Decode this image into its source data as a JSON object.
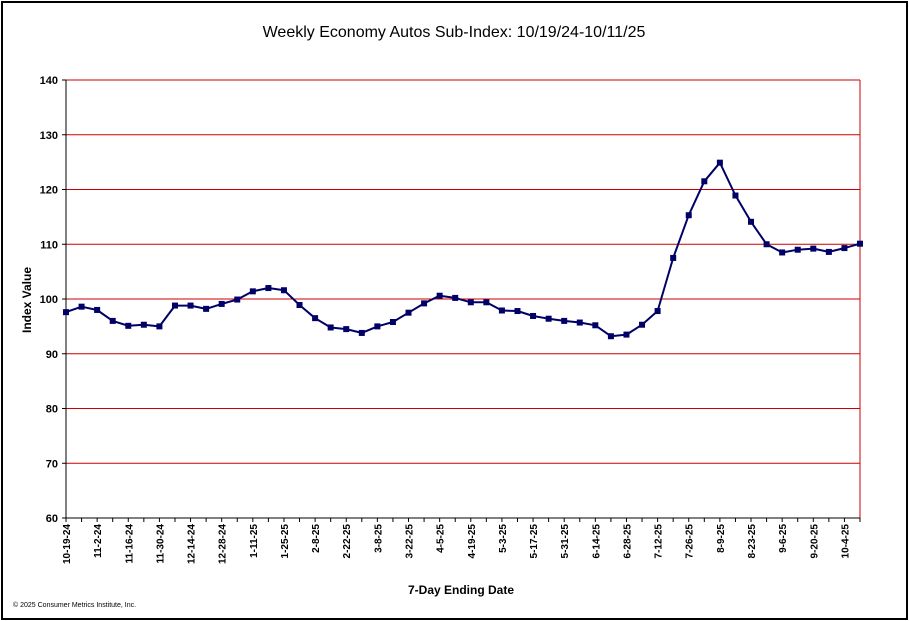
{
  "chart_data": {
    "type": "line",
    "title": "Weekly Economy Autos Sub-Index: 10/19/24-10/11/25",
    "xlabel": "7-Day Ending Date",
    "ylabel": "Index Value",
    "ylim": [
      60,
      140
    ],
    "yticks": [
      "140",
      "130",
      "120",
      "110",
      "100",
      "90",
      "80",
      "70",
      "60"
    ],
    "grid": true,
    "x_tick_labels": [
      "10-19-24",
      "11-2-24",
      "11-16-24",
      "11-30-24",
      "12-14-24",
      "12-28-24",
      "1-11-25",
      "1-25-25",
      "2-8-25",
      "2-22-25",
      "3-8-25",
      "3-22-25",
      "4-5-25",
      "4-19-25",
      "5-3-25",
      "5-17-25",
      "5-31-25",
      "6-14-25",
      "6-28-25",
      "7-12-25",
      "7-26-25",
      "8-9-25",
      "8-23-25",
      "9-6-25",
      "9-20-25",
      "10-4-25"
    ],
    "series": [
      {
        "values": [
          97.6,
          98.6,
          98.0,
          96.0,
          95.1,
          95.3,
          95.0,
          98.8,
          98.8,
          98.2,
          99.1,
          99.9,
          101.4,
          102.0,
          101.6,
          98.9,
          96.5,
          94.8,
          94.5,
          93.8,
          95.0,
          95.8,
          97.5,
          99.2,
          100.6,
          100.2,
          99.4,
          99.4,
          97.9,
          97.8,
          96.9,
          96.4,
          96.0,
          95.7,
          95.2,
          93.2,
          93.5,
          95.3,
          97.8,
          107.5,
          115.3,
          121.5,
          124.9,
          118.9,
          114.1,
          110.0,
          108.5,
          109.0,
          109.2,
          108.6,
          109.3,
          110.1
        ]
      }
    ],
    "colors": {
      "line": "#000066",
      "marker": "#000066",
      "grid": "#cc0000",
      "axis": "#000000",
      "frame": "#000000"
    }
  },
  "footnote": "© 2025 Consumer Metrics Institute, Inc."
}
